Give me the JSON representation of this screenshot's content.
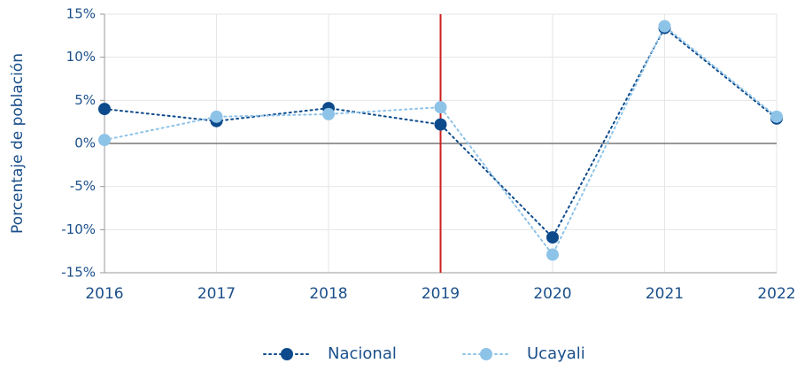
{
  "chart_data": {
    "type": "line",
    "y_label": "Porcentaje de población",
    "categories": [
      "2016",
      "2017",
      "2018",
      "2019",
      "2020",
      "2021",
      "2022"
    ],
    "series": [
      {
        "name": "Nacional",
        "color": "#0d4a8c",
        "values": [
          4.0,
          2.6,
          4.1,
          2.2,
          -10.9,
          13.4,
          2.9
        ]
      },
      {
        "name": "Ucayali",
        "color": "#8ec3e8",
        "values": [
          0.4,
          3.1,
          3.4,
          4.2,
          -12.9,
          13.6,
          3.1
        ]
      }
    ],
    "ylim": [
      -15,
      15
    ],
    "yticks": [
      {
        "value": -15,
        "label": "-15%"
      },
      {
        "value": -10,
        "label": "-10%"
      },
      {
        "value": -5,
        "label": "-5%"
      },
      {
        "value": 0,
        "label": "0%"
      },
      {
        "value": 5,
        "label": "5%"
      },
      {
        "value": 10,
        "label": "10%"
      },
      {
        "value": 15,
        "label": "15%"
      }
    ],
    "grid": true,
    "vline": {
      "category": "2019",
      "color": "#cc1f1f"
    },
    "legend": "bottom"
  }
}
